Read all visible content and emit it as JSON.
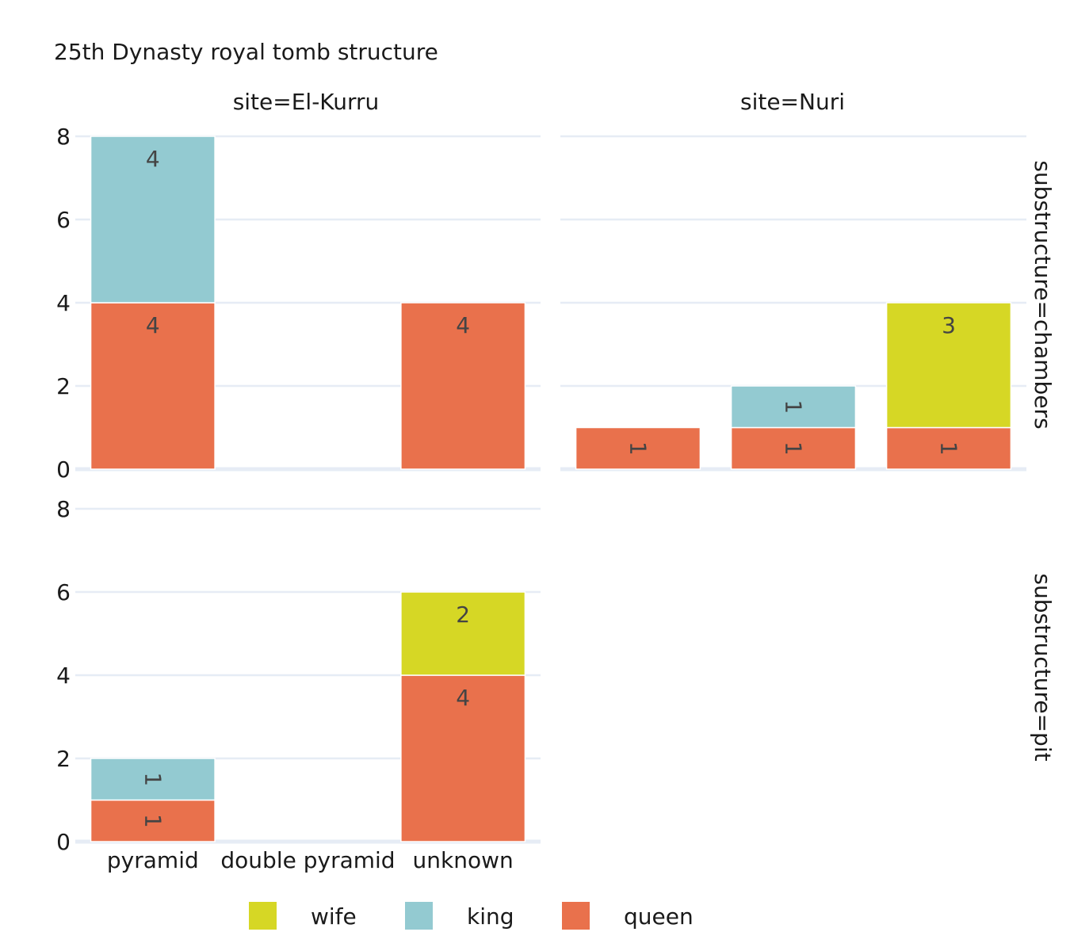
{
  "chart_data": {
    "type": "bar",
    "title": "25th Dynasty royal tomb structure",
    "barmode": "stack",
    "categories": [
      "pyramid",
      "double pyramid",
      "unknown"
    ],
    "ylim": [
      0,
      8
    ],
    "yticks": [
      0,
      2,
      4,
      6,
      8
    ],
    "grid": true,
    "legend": {
      "placement": "bottom",
      "order": [
        "wife",
        "king",
        "queen"
      ]
    },
    "colors": {
      "wife": "#d6d725",
      "king": "#93cad1",
      "queen": "#e9714c"
    },
    "facet_columns": [
      {
        "key": "el-kurru",
        "label": "site=El-Kurru"
      },
      {
        "key": "nuri",
        "label": "site=Nuri"
      }
    ],
    "facet_rows": [
      {
        "key": "chambers",
        "label": "substructure=chambers"
      },
      {
        "key": "pit",
        "label": "substructure=pit"
      }
    ],
    "panels": [
      {
        "column": "el-kurru",
        "row": "chambers",
        "series": [
          {
            "name": "queen",
            "values": [
              4,
              0,
              4
            ],
            "labels": [
              "4",
              "",
              "4"
            ]
          },
          {
            "name": "king",
            "values": [
              4,
              0,
              0
            ],
            "labels": [
              "4",
              "",
              ""
            ]
          },
          {
            "name": "wife",
            "values": [
              0,
              0,
              0
            ],
            "labels": [
              "",
              "",
              ""
            ]
          }
        ]
      },
      {
        "column": "nuri",
        "row": "chambers",
        "series": [
          {
            "name": "queen",
            "values": [
              1,
              1,
              1
            ],
            "labels": [
              "1",
              "1",
              "1"
            ]
          },
          {
            "name": "king",
            "values": [
              0,
              1,
              0
            ],
            "labels": [
              "",
              "1",
              ""
            ]
          },
          {
            "name": "wife",
            "values": [
              0,
              0,
              3
            ],
            "labels": [
              "",
              "",
              "3"
            ]
          }
        ]
      },
      {
        "column": "el-kurru",
        "row": "pit",
        "series": [
          {
            "name": "queen",
            "values": [
              1,
              0,
              4
            ],
            "labels": [
              "1",
              "",
              "4"
            ]
          },
          {
            "name": "king",
            "values": [
              1,
              0,
              0
            ],
            "labels": [
              "1",
              "",
              ""
            ]
          },
          {
            "name": "wife",
            "values": [
              0,
              0,
              2
            ],
            "labels": [
              "",
              "",
              "2"
            ]
          }
        ]
      }
    ]
  }
}
